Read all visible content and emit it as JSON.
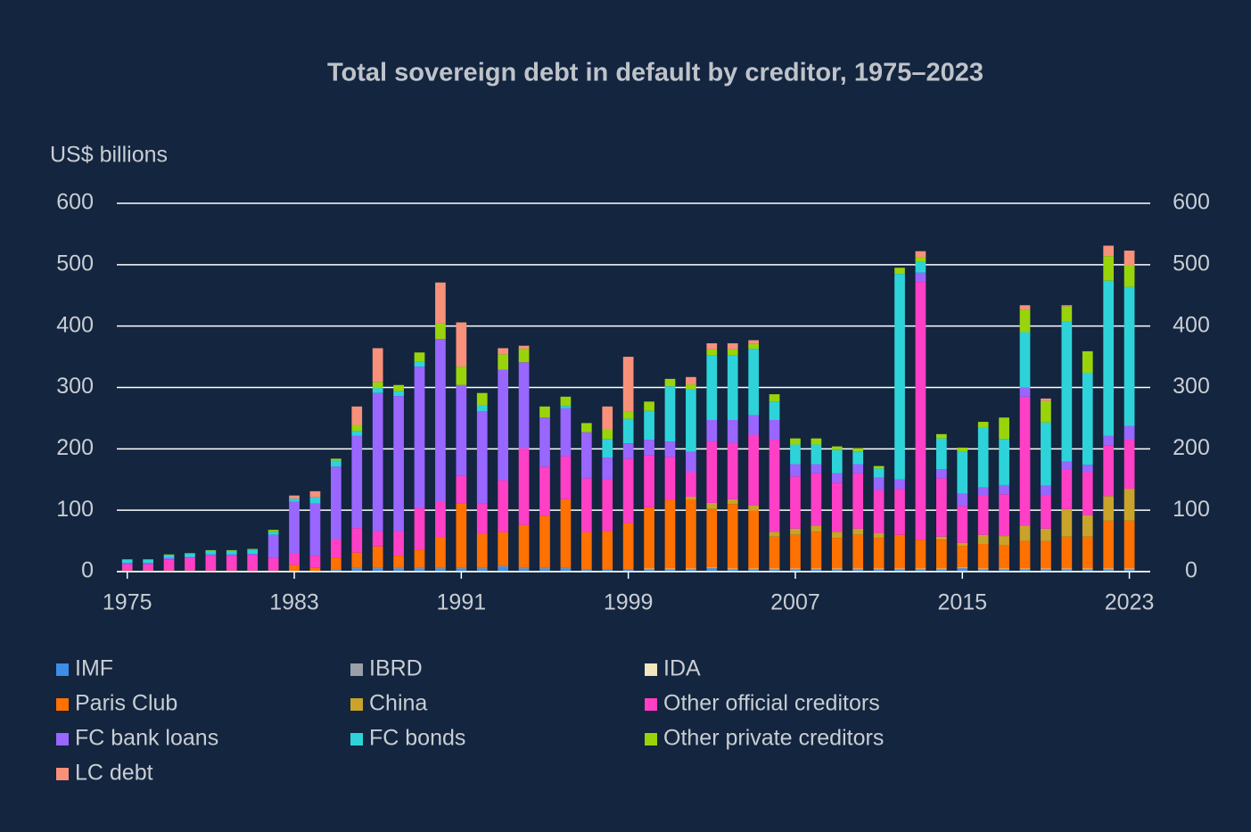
{
  "chart_data": {
    "type": "stacked-bar",
    "title": "Total sovereign debt in default by creditor, 1975–2023",
    "y_label": "US$ billions",
    "x": [
      1975,
      1976,
      1977,
      1978,
      1979,
      1980,
      1981,
      1982,
      1983,
      1984,
      1985,
      1986,
      1987,
      1988,
      1989,
      1990,
      1991,
      1992,
      1993,
      1994,
      1995,
      1996,
      1997,
      1998,
      1999,
      2000,
      2001,
      2002,
      2003,
      2004,
      2005,
      2006,
      2007,
      2008,
      2009,
      2010,
      2011,
      2012,
      2013,
      2014,
      2015,
      2016,
      2017,
      2018,
      2019,
      2020,
      2021,
      2022,
      2023
    ],
    "xlim": [
      1974.5,
      2024
    ],
    "xticks": [
      1975,
      1983,
      1991,
      1999,
      2007,
      2015,
      2023
    ],
    "ylim": [
      0,
      600
    ],
    "yticks": [
      0,
      100,
      200,
      300,
      400,
      500,
      600
    ],
    "y2lim": [
      0,
      600
    ],
    "y2ticks": [
      0,
      100,
      200,
      300,
      400,
      500,
      600
    ],
    "grid": true,
    "series": [
      {
        "name": "IMF",
        "color": "#3d8ee6",
        "values": [
          1,
          1,
          1,
          1,
          1,
          1,
          1,
          1,
          1,
          1,
          2,
          5,
          5,
          5,
          5,
          5,
          5,
          5,
          8,
          5,
          5,
          5,
          3,
          3,
          3,
          3,
          3,
          3,
          5,
          3,
          3,
          3,
          3,
          3,
          3,
          3,
          3,
          3,
          3,
          3,
          5,
          3,
          3,
          3,
          3,
          3,
          3,
          3,
          3
        ]
      },
      {
        "name": "IBRD",
        "color": "#9aa0a8",
        "values": [
          0,
          0,
          0,
          0,
          0,
          0,
          0,
          0,
          0,
          0,
          1,
          1,
          1,
          1,
          1,
          1,
          1,
          1,
          1,
          1,
          1,
          1,
          1,
          1,
          1,
          1,
          1,
          1,
          1,
          1,
          1,
          1,
          1,
          1,
          1,
          1,
          1,
          1,
          1,
          1,
          1,
          1,
          1,
          1,
          1,
          1,
          1,
          1,
          1
        ]
      },
      {
        "name": "IDA",
        "color": "#f2e6bd",
        "values": [
          0,
          0,
          0,
          0,
          0,
          0,
          0,
          0,
          0,
          0,
          0,
          0,
          0,
          0,
          0,
          0,
          0,
          0,
          0,
          0,
          0,
          0,
          0,
          0,
          0,
          1,
          1,
          1,
          1,
          1,
          1,
          1,
          1,
          1,
          1,
          1,
          1,
          1,
          1,
          1,
          1,
          1,
          1,
          1,
          1,
          1,
          1,
          1,
          1
        ]
      },
      {
        "name": "Paris Club",
        "color": "#ff7100",
        "values": [
          1,
          1,
          1,
          1,
          1,
          1,
          1,
          1,
          10,
          5,
          20,
          25,
          35,
          20,
          30,
          50,
          105,
          55,
          55,
          70,
          85,
          112,
          60,
          62,
          75,
          100,
          112,
          112,
          95,
          105,
          95,
          52,
          55,
          60,
          50,
          55,
          50,
          55,
          47,
          47,
          35,
          40,
          38,
          45,
          45,
          52,
          52,
          78,
          78
        ]
      },
      {
        "name": "China",
        "color": "#c9a32a",
        "values": [
          0,
          0,
          0,
          0,
          0,
          0,
          0,
          0,
          0,
          0,
          0,
          0,
          0,
          0,
          0,
          0,
          0,
          0,
          0,
          0,
          0,
          0,
          0,
          0,
          0,
          0,
          0,
          5,
          10,
          8,
          8,
          8,
          10,
          10,
          10,
          10,
          8,
          0,
          0,
          5,
          5,
          15,
          15,
          25,
          20,
          45,
          35,
          40,
          52
        ]
      },
      {
        "name": "Other official creditors",
        "color": "#ff3fc5",
        "values": [
          10,
          10,
          18,
          20,
          24,
          24,
          25,
          20,
          18,
          20,
          30,
          40,
          25,
          40,
          68,
          58,
          45,
          50,
          85,
          125,
          80,
          70,
          88,
          85,
          105,
          85,
          70,
          40,
          100,
          92,
          115,
          150,
          85,
          85,
          80,
          90,
          70,
          75,
          420,
          95,
          60,
          65,
          68,
          210,
          55,
          65,
          70,
          83,
          80
        ]
      },
      {
        "name": "FC bank loans",
        "color": "#9966ff",
        "values": [
          2,
          2,
          2,
          2,
          2,
          2,
          2,
          38,
          85,
          85,
          118,
          150,
          225,
          220,
          230,
          265,
          148,
          150,
          180,
          140,
          80,
          78,
          75,
          35,
          25,
          25,
          25,
          33,
          35,
          37,
          32,
          32,
          20,
          15,
          15,
          15,
          20,
          15,
          15,
          15,
          20,
          12,
          15,
          15,
          15,
          12,
          12,
          15,
          22
        ]
      },
      {
        "name": "FC bonds",
        "color": "#2ed3d9",
        "values": [
          5,
          5,
          5,
          5,
          6,
          6,
          7,
          5,
          5,
          10,
          10,
          8,
          8,
          8,
          8,
          0,
          0,
          10,
          0,
          0,
          0,
          4,
          0,
          30,
          40,
          47,
          90,
          102,
          105,
          105,
          108,
          30,
          32,
          32,
          38,
          20,
          15,
          335,
          18,
          50,
          68,
          97,
          75,
          90,
          103,
          228,
          150,
          253,
          227
        ]
      },
      {
        "name": "Other private creditors",
        "color": "#99d40b",
        "values": [
          1,
          1,
          1,
          1,
          1,
          1,
          1,
          3,
          0,
          0,
          3,
          10,
          10,
          10,
          15,
          25,
          30,
          20,
          25,
          22,
          18,
          15,
          15,
          15,
          12,
          15,
          12,
          8,
          10,
          10,
          8,
          12,
          10,
          10,
          6,
          6,
          4,
          10,
          7,
          7,
          7,
          10,
          35,
          37,
          35,
          25,
          35,
          40,
          35
        ]
      },
      {
        "name": "LC debt",
        "color": "#f8907a",
        "values": [
          0,
          0,
          0,
          0,
          0,
          0,
          0,
          0,
          5,
          10,
          0,
          30,
          55,
          0,
          0,
          67,
          72,
          0,
          10,
          5,
          0,
          0,
          0,
          38,
          89,
          0,
          0,
          12,
          10,
          10,
          6,
          0,
          0,
          0,
          0,
          0,
          0,
          0,
          10,
          0,
          0,
          0,
          0,
          7,
          4,
          2,
          0,
          17,
          24
        ]
      }
    ]
  }
}
